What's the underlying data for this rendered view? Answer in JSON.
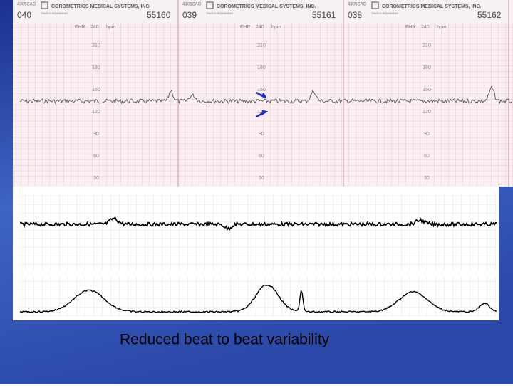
{
  "header": {
    "panels": [
      {
        "page": "040",
        "code": "4305CAO",
        "company": "COROMETRICS MEDICAL SYSTEMS, INC.",
        "pages": "PAGES REMAINING",
        "serial": "55160"
      },
      {
        "page": "039",
        "code": "4305CAO",
        "company": "COROMETRICS MEDICAL SYSTEMS, INC.",
        "pages": "PAGES REMAINING",
        "serial": "55161"
      },
      {
        "page": "038",
        "code": "4305CAO",
        "company": "COROMETRICS MEDICAL SYSTEMS, INC.",
        "pages": "PAGES REMAINING",
        "serial": "55162"
      }
    ]
  },
  "scale": {
    "name": "FHR",
    "max": 240,
    "unit": "bpm",
    "labels": [
      210,
      180,
      150,
      120,
      90,
      60,
      30
    ]
  },
  "caption": "Reduced beat to beat variability"
}
